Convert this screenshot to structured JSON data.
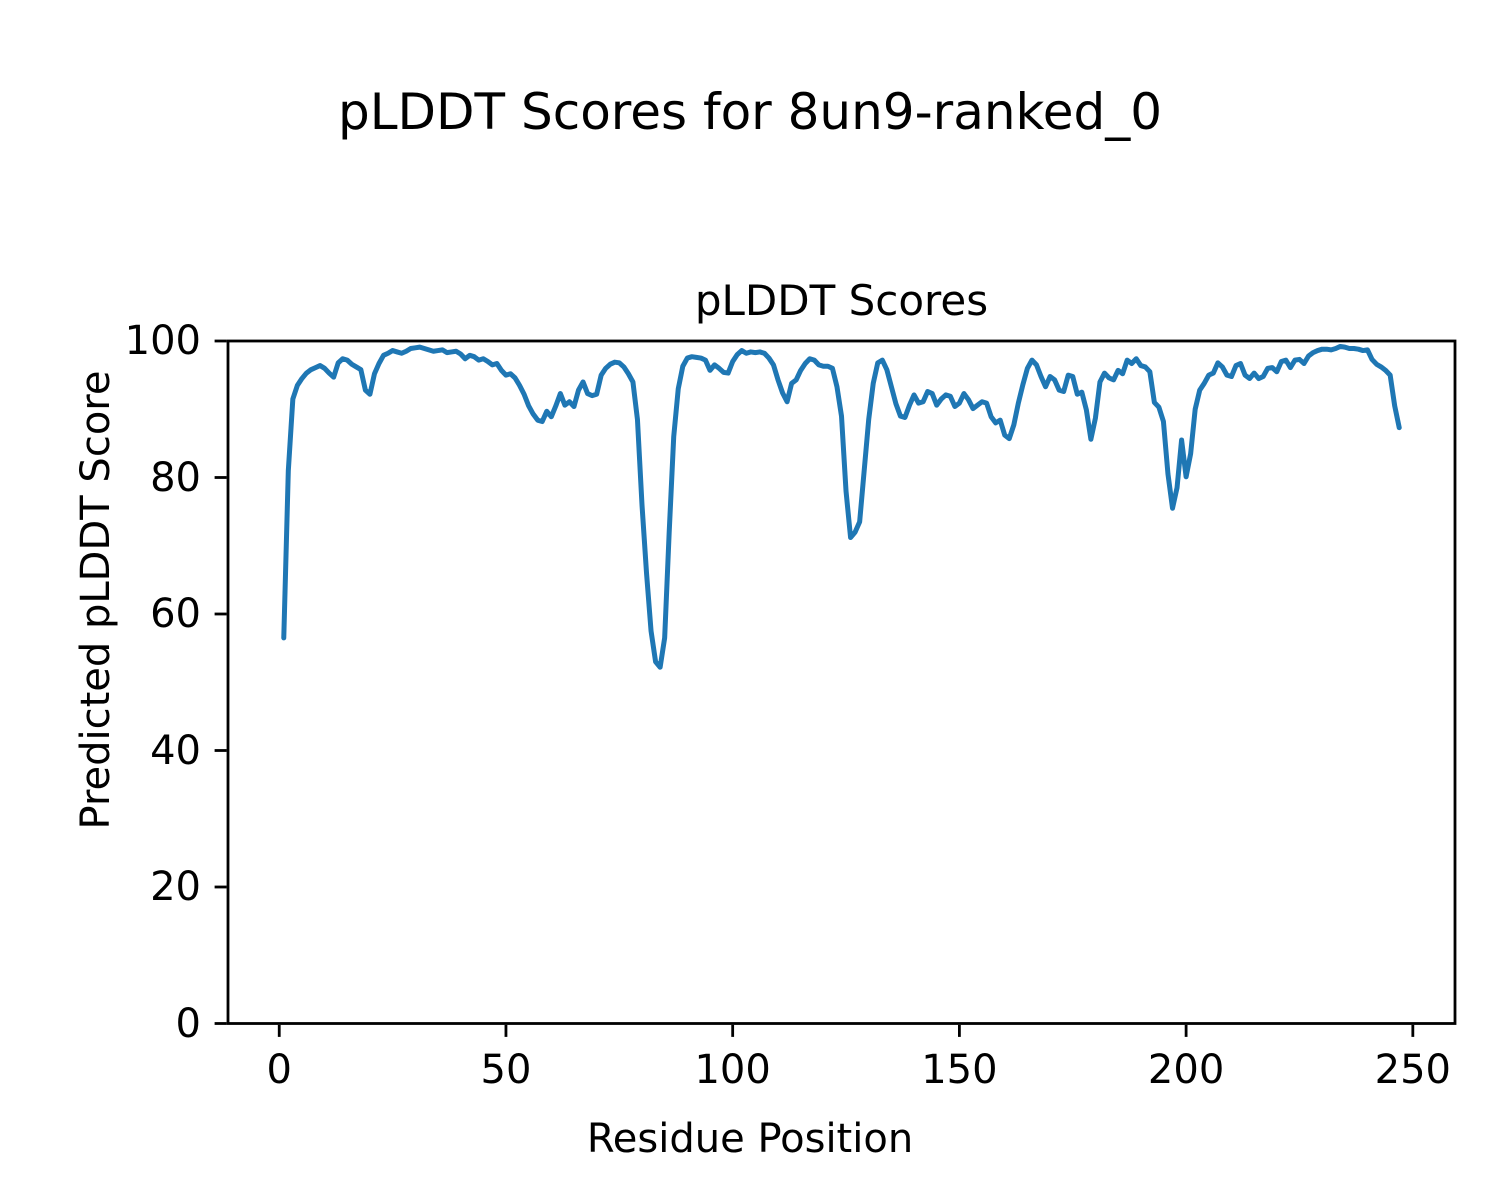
{
  "figure_title": "pLDDT Scores for 8un9-ranked_0",
  "chart_data": {
    "type": "line",
    "title": "pLDDT Scores",
    "xlabel": "Residue Position",
    "ylabel": "Predicted pLDDT Score",
    "xlim": [
      -11.3,
      259.3
    ],
    "ylim": [
      0,
      100
    ],
    "x_ticks": [
      0,
      50,
      100,
      150,
      200,
      250
    ],
    "y_ticks": [
      0,
      20,
      40,
      60,
      80,
      100
    ],
    "grid": false,
    "legend": "none",
    "line_color": "#1f77b4",
    "background_color": "#ffffff",
    "spine_color": "#000000",
    "series": [
      {
        "name": "pLDDT",
        "x_start": 1,
        "x_step": 1,
        "y": [
          56.5,
          81.0,
          91.5,
          93.5,
          94.5,
          95.3,
          95.8,
          96.1,
          96.4,
          96.0,
          95.3,
          94.7,
          96.8,
          97.4,
          97.2,
          96.6,
          96.2,
          95.8,
          92.8,
          92.2,
          95.2,
          96.7,
          97.9,
          98.2,
          98.6,
          98.4,
          98.2,
          98.5,
          98.9,
          99.0,
          99.1,
          98.9,
          98.7,
          98.5,
          98.6,
          98.7,
          98.3,
          98.4,
          98.5,
          98.1,
          97.4,
          97.9,
          97.7,
          97.2,
          97.4,
          97.0,
          96.5,
          96.7,
          95.7,
          95.0,
          95.2,
          94.6,
          93.5,
          92.2,
          90.5,
          89.3,
          88.4,
          88.2,
          89.7,
          88.9,
          90.5,
          92.3,
          90.6,
          91.1,
          90.4,
          92.8,
          94.0,
          92.3,
          92.0,
          92.2,
          95.0,
          96.0,
          96.6,
          96.9,
          96.8,
          96.2,
          95.2,
          94.0,
          88.5,
          76.0,
          66.0,
          57.5,
          53.0,
          52.2,
          56.5,
          72.0,
          86.0,
          93.0,
          96.3,
          97.5,
          97.7,
          97.6,
          97.5,
          97.2,
          95.7,
          96.5,
          96.0,
          95.4,
          95.3,
          97.0,
          98.0,
          98.6,
          98.2,
          98.4,
          98.3,
          98.4,
          98.2,
          97.5,
          96.5,
          94.3,
          92.4,
          91.1,
          93.8,
          94.3,
          95.7,
          96.7,
          97.4,
          97.2,
          96.5,
          96.3,
          96.3,
          96.0,
          93.3,
          89.0,
          78.0,
          71.2,
          72.0,
          73.5,
          81.0,
          88.5,
          93.8,
          96.8,
          97.2,
          95.8,
          93.3,
          90.8,
          89.0,
          88.8,
          90.6,
          92.1,
          90.9,
          91.1,
          92.6,
          92.3,
          90.6,
          91.5,
          92.1,
          91.9,
          90.4,
          90.9,
          92.3,
          91.4,
          90.1,
          90.6,
          91.1,
          90.9,
          88.9,
          88.0,
          88.4,
          86.2,
          85.7,
          87.7,
          90.9,
          93.6,
          96.0,
          97.2,
          96.5,
          94.8,
          93.3,
          94.8,
          94.3,
          92.8,
          92.6,
          95.0,
          94.8,
          92.2,
          92.5,
          89.9,
          85.6,
          88.7,
          94.0,
          95.3,
          94.6,
          94.3,
          95.7,
          95.2,
          97.2,
          96.7,
          97.4,
          96.4,
          96.2,
          95.5,
          91.0,
          90.3,
          88.2,
          80.5,
          75.5,
          78.5,
          85.5,
          80.1,
          83.5,
          90.0,
          92.8,
          93.8,
          95.0,
          95.3,
          96.8,
          96.2,
          95.0,
          94.8,
          96.4,
          96.7,
          95.0,
          94.5,
          95.3,
          94.5,
          94.8,
          96.0,
          96.1,
          95.5,
          97.0,
          97.2,
          96.1,
          97.2,
          97.3,
          96.7,
          97.8,
          98.3,
          98.6,
          98.8,
          98.8,
          98.7,
          98.9,
          99.2,
          99.1,
          98.9,
          98.9,
          98.8,
          98.6,
          98.7,
          97.3,
          96.6,
          96.2,
          95.7,
          95.0,
          90.5,
          87.3
        ]
      }
    ]
  }
}
